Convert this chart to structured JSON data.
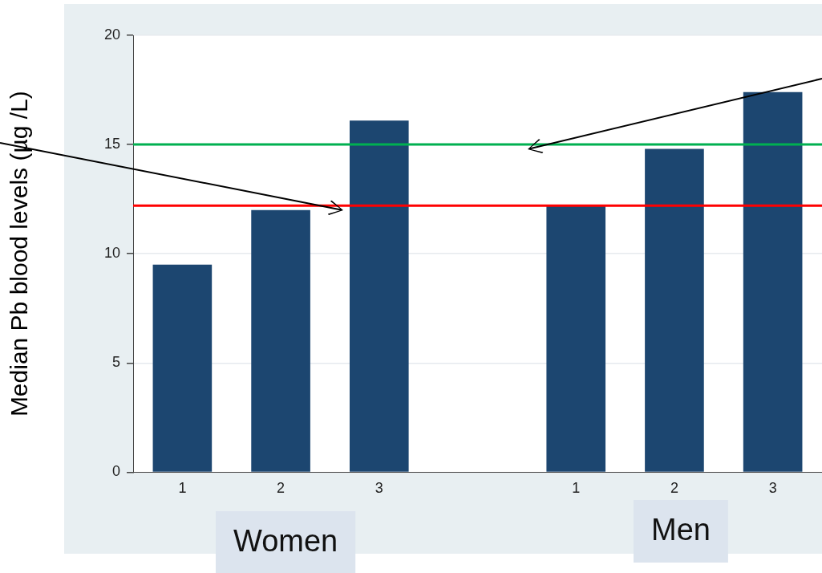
{
  "chart_data": {
    "type": "bar",
    "ylabel": "Median Pb blood levels (µg /L)",
    "categories": [
      "1",
      "2",
      "3",
      null,
      "1",
      "2",
      "3"
    ],
    "values": [
      9.5,
      12.0,
      16.1,
      null,
      12.2,
      14.8,
      17.4
    ],
    "color": "#1c4670",
    "ylim": [
      0,
      20
    ],
    "yticks": [
      0,
      5,
      10,
      15,
      20
    ],
    "grid": "y",
    "legend": false,
    "ref_lines": [
      {
        "axis": "y",
        "value": 12.2,
        "color": "#ff0000"
      },
      {
        "axis": "y",
        "value": 15,
        "color": "#00b050"
      }
    ],
    "annotations": [
      "Women",
      "Men"
    ]
  }
}
